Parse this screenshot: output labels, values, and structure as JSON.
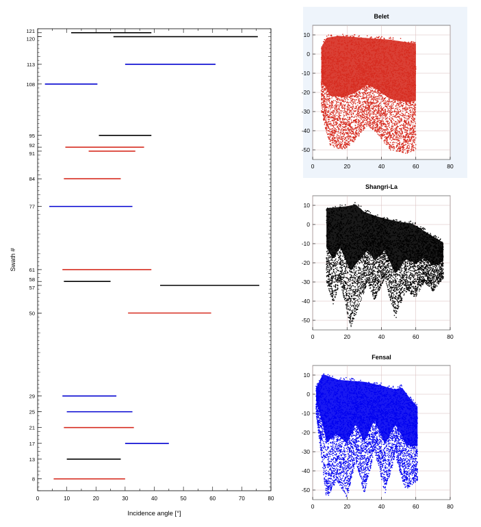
{
  "chart_data": [
    {
      "type": "range",
      "xlabel": "Incidence angle [°]",
      "ylabel": "Swath #",
      "xlim": [
        0,
        80
      ],
      "x_ticks": [
        0,
        10,
        20,
        30,
        40,
        50,
        60,
        70,
        80
      ],
      "ylim": [
        5,
        122
      ],
      "y_ticks": [
        8,
        13,
        17,
        21,
        25,
        29,
        50,
        57,
        58,
        61,
        77,
        84,
        91,
        92,
        95,
        108,
        113,
        120,
        121
      ],
      "colors": {
        "red": "#d62b1f",
        "black": "#000000",
        "blue": "#0000d0"
      },
      "swaths": [
        {
          "swath": 121,
          "start": 11.5,
          "end": 39,
          "color": "black"
        },
        {
          "swath": 120,
          "start": 26,
          "end": 75.5,
          "color": "black"
        },
        {
          "swath": 113,
          "start": 30,
          "end": 61,
          "color": "blue"
        },
        {
          "swath": 108,
          "start": 2.5,
          "end": 20.5,
          "color": "blue"
        },
        {
          "swath": 95,
          "start": 21,
          "end": 39,
          "color": "black"
        },
        {
          "swath": 92,
          "start": 9.5,
          "end": 36.5,
          "color": "red"
        },
        {
          "swath": 91,
          "start": 17.5,
          "end": 33.5,
          "color": "red"
        },
        {
          "swath": 84,
          "start": 9,
          "end": 28.5,
          "color": "red"
        },
        {
          "swath": 77,
          "start": 4,
          "end": 32.5,
          "color": "blue"
        },
        {
          "swath": 61,
          "start": 8.5,
          "end": 39,
          "color": "red"
        },
        {
          "swath": 58,
          "start": 9,
          "end": 25,
          "color": "black"
        },
        {
          "swath": 57,
          "start": 42,
          "end": 76,
          "color": "black"
        },
        {
          "swath": 50,
          "start": 31,
          "end": 59.5,
          "color": "red"
        },
        {
          "swath": 29,
          "start": 8.5,
          "end": 27,
          "color": "blue"
        },
        {
          "swath": 25,
          "start": 10,
          "end": 32.5,
          "color": "blue"
        },
        {
          "swath": 21,
          "start": 9,
          "end": 33,
          "color": "red"
        },
        {
          "swath": 17,
          "start": 30,
          "end": 45,
          "color": "blue"
        },
        {
          "swath": 13,
          "start": 10,
          "end": 28.5,
          "color": "black"
        },
        {
          "swath": 8,
          "start": 5.5,
          "end": 30,
          "color": "red"
        }
      ]
    },
    {
      "type": "scatter",
      "title": "Belet",
      "color": "#d62b1f",
      "xlim": [
        0,
        80
      ],
      "ylim": [
        -55,
        15
      ],
      "x_ticks": [
        0,
        20,
        40,
        60,
        80
      ],
      "y_ticks": [
        10,
        0,
        -10,
        -20,
        -30,
        -40,
        -50
      ],
      "x_range": [
        5,
        60
      ],
      "upper_envelope": [
        [
          5,
          5
        ],
        [
          8,
          10
        ],
        [
          15,
          11
        ],
        [
          30,
          10
        ],
        [
          45,
          9
        ],
        [
          60,
          7
        ]
      ],
      "lower_envelope": [
        [
          5,
          -30
        ],
        [
          10,
          -48
        ],
        [
          18,
          -50
        ],
        [
          25,
          -45
        ],
        [
          32,
          -37
        ],
        [
          38,
          -42
        ],
        [
          45,
          -50
        ],
        [
          55,
          -52
        ],
        [
          60,
          -50
        ]
      ]
    },
    {
      "type": "scatter",
      "title": "Shangri-La",
      "color": "#000000",
      "xlim": [
        0,
        80
      ],
      "ylim": [
        -55,
        15
      ],
      "x_ticks": [
        0,
        20,
        40,
        60,
        80
      ],
      "y_ticks": [
        10,
        0,
        -10,
        -20,
        -30,
        -40,
        -50
      ],
      "x_range": [
        8,
        76
      ],
      "upper_envelope": [
        [
          8,
          10
        ],
        [
          20,
          11
        ],
        [
          25,
          12
        ],
        [
          30,
          8
        ],
        [
          40,
          5
        ],
        [
          50,
          3
        ],
        [
          58,
          2
        ],
        [
          65,
          -2
        ],
        [
          76,
          -8
        ]
      ],
      "lower_envelope": [
        [
          8,
          -30
        ],
        [
          12,
          -42
        ],
        [
          16,
          -30
        ],
        [
          22,
          -54
        ],
        [
          26,
          -45
        ],
        [
          32,
          -30
        ],
        [
          36,
          -40
        ],
        [
          42,
          -28
        ],
        [
          48,
          -50
        ],
        [
          54,
          -35
        ],
        [
          60,
          -38
        ],
        [
          65,
          -30
        ],
        [
          70,
          -35
        ],
        [
          76,
          -28
        ]
      ]
    },
    {
      "type": "scatter",
      "title": "Fensal",
      "color": "#0000f0",
      "xlim": [
        0,
        80
      ],
      "ylim": [
        -55,
        15
      ],
      "x_ticks": [
        0,
        20,
        40,
        60,
        80
      ],
      "y_ticks": [
        10,
        0,
        -10,
        -20,
        -30,
        -40,
        -50
      ],
      "x_range": [
        2,
        61
      ],
      "upper_envelope": [
        [
          2,
          5
        ],
        [
          6,
          12
        ],
        [
          15,
          9
        ],
        [
          30,
          8
        ],
        [
          40,
          6
        ],
        [
          48,
          4
        ],
        [
          52,
          5
        ],
        [
          56,
          0
        ],
        [
          61,
          -5
        ]
      ],
      "lower_envelope": [
        [
          2,
          -10
        ],
        [
          8,
          -55
        ],
        [
          14,
          -45
        ],
        [
          20,
          -54
        ],
        [
          25,
          -35
        ],
        [
          30,
          -52
        ],
        [
          36,
          -30
        ],
        [
          42,
          -52
        ],
        [
          48,
          -32
        ],
        [
          54,
          -50
        ],
        [
          61,
          -45
        ]
      ]
    }
  ]
}
